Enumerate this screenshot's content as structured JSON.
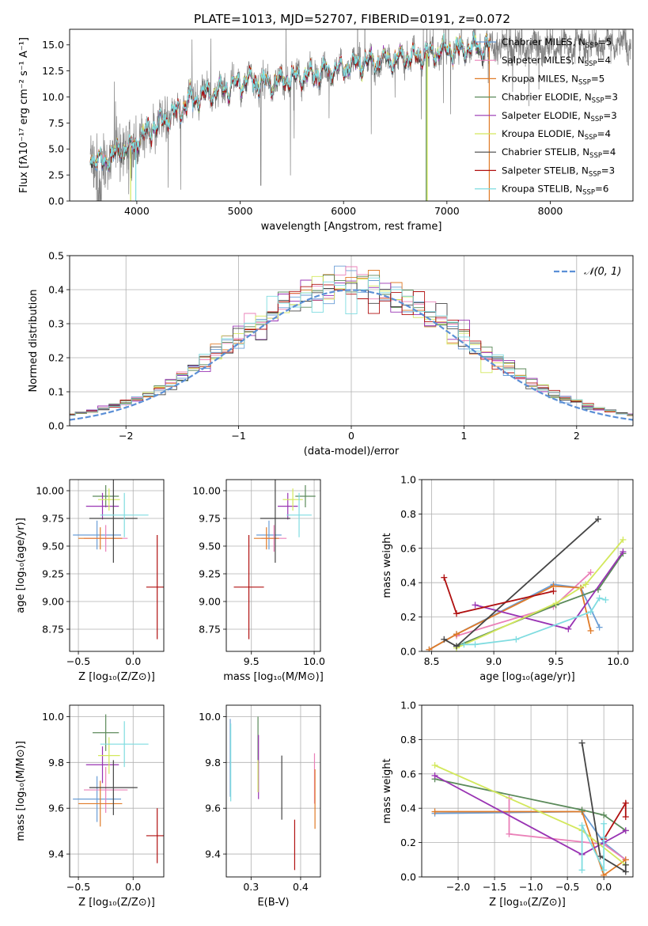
{
  "figure_title": "PLATE=1013, MJD=52707, FIBERID=0191, z=0.072",
  "colors": {
    "Chabrier MILES": "#6a9ed6",
    "Salpeter MILES": "#ea80b8",
    "Kroupa MILES": "#e07b28",
    "Chabrier ELODIE": "#5b8a5a",
    "Salpeter ELODIE": "#9933b3",
    "Kroupa ELODIE": "#d3e85c",
    "Chabrier STELIB": "#454545",
    "Salpeter STELIB": "#b01010",
    "Kroupa STELIB": "#7fdce0",
    "data": "#808080",
    "normal": "#5b8fd6"
  },
  "chart_data": [
    {
      "id": "spectrum",
      "type": "line",
      "xlabel": "wavelength [Angstrom, rest frame]",
      "ylabel": "Flux [fλ10⁻¹⁷ erg cm⁻² s⁻¹ A⁻¹]",
      "xlim": [
        3350,
        8800
      ],
      "ylim": [
        0,
        16.5
      ],
      "xticks": [
        4000,
        5000,
        6000,
        7000,
        8000
      ],
      "yticks": [
        0.0,
        2.5,
        5.0,
        7.5,
        10.0,
        12.5,
        15.0
      ],
      "ytick_labels": [
        "0.0",
        "2.5",
        "5.0",
        "7.5",
        "10.0",
        "12.5",
        "15.0"
      ],
      "legend": [
        {
          "name": "Chabrier MILES",
          "sub": "SSP",
          "n": "5"
        },
        {
          "name": "Salpeter MILES",
          "sub": "SSP",
          "n": "4"
        },
        {
          "name": "Kroupa MILES",
          "sub": "SSP",
          "n": "5"
        },
        {
          "name": "Chabrier ELODIE",
          "sub": "SSP",
          "n": "3"
        },
        {
          "name": "Salpeter ELODIE",
          "sub": "SSP",
          "n": "3"
        },
        {
          "name": "Kroupa ELODIE",
          "sub": "SSP",
          "n": "4"
        },
        {
          "name": "Chabrier STELIB",
          "sub": "SSP",
          "n": "4"
        },
        {
          "name": "Salpeter STELIB",
          "sub": "SSP",
          "n": "3"
        },
        {
          "name": "Kroupa STELIB",
          "sub": "SSP",
          "n": "6"
        }
      ],
      "continuum": [
        [
          3550,
          4.4
        ],
        [
          3650,
          3.6
        ],
        [
          3750,
          4.3
        ],
        [
          3850,
          5.2
        ],
        [
          3950,
          5.2
        ],
        [
          4050,
          6.3
        ],
        [
          4150,
          7.0
        ],
        [
          4300,
          8.0
        ],
        [
          4500,
          9.6
        ],
        [
          4700,
          10.4
        ],
        [
          4900,
          11.0
        ],
        [
          5100,
          11.5
        ],
        [
          5300,
          11.3
        ],
        [
          5500,
          11.8
        ],
        [
          5700,
          12.2
        ],
        [
          5900,
          12.6
        ],
        [
          6100,
          13.1
        ],
        [
          6300,
          13.4
        ],
        [
          6500,
          13.6
        ],
        [
          6700,
          14.0
        ],
        [
          6900,
          14.4
        ],
        [
          7100,
          14.6
        ],
        [
          7300,
          14.7
        ],
        [
          7500,
          14.8
        ]
      ],
      "data_range": [
        3550,
        8780
      ],
      "model_range": [
        3550,
        7420
      ],
      "model_cutoffs": [
        [
          6800,
          "Chabrier ELODIE"
        ],
        [
          6810,
          "Kroupa ELODIE"
        ],
        [
          7410,
          "Kroupa MILES"
        ],
        [
          3940,
          "Kroupa ELODIE"
        ],
        [
          3990,
          "Kroupa STELIB"
        ]
      ]
    },
    {
      "id": "residual-histogram",
      "type": "step",
      "xlabel": "(data-model)/error",
      "ylabel": "Normed distribution",
      "xlim": [
        -2.5,
        2.5
      ],
      "ylim": [
        0,
        0.5
      ],
      "xticks": [
        -2,
        -1,
        0,
        1,
        2
      ],
      "xtick_labels": [
        "−2",
        "−1",
        "0",
        "1",
        "2"
      ],
      "yticks": [
        0.0,
        0.1,
        0.2,
        0.3,
        0.4,
        0.5
      ],
      "ytick_labels": [
        "0.0",
        "0.1",
        "0.2",
        "0.3",
        "0.4",
        "0.5"
      ],
      "legend": "𝒩(0, 1)",
      "bin_width": 0.1
    },
    {
      "id": "age-vs-Z",
      "type": "errorbar",
      "xlabel": "Z [log₁₀(Z/Z⊙)]",
      "ylabel": "age  [log₁₀(age/yr)]",
      "xlim": [
        -0.58,
        0.28
      ],
      "ylim": [
        8.55,
        10.1
      ],
      "xticks": [
        -0.5,
        0.0
      ],
      "xtick_labels": [
        "−0.5",
        "0.0"
      ],
      "yticks": [
        8.75,
        9.0,
        9.25,
        9.5,
        9.75,
        10.0
      ],
      "ytick_labels": [
        "8.75",
        "9.00",
        "9.25",
        "9.50",
        "9.75",
        "10.00"
      ],
      "points": [
        {
          "s": "Chabrier MILES",
          "x": -0.33,
          "xe": 0.22,
          "y": 9.6,
          "ye": 0.13
        },
        {
          "s": "Salpeter MILES",
          "x": -0.25,
          "xe": 0.2,
          "y": 9.57,
          "ye": 0.12
        },
        {
          "s": "Kroupa MILES",
          "x": -0.3,
          "xe": 0.2,
          "y": 9.57,
          "ye": 0.1
        },
        {
          "s": "Chabrier ELODIE",
          "x": -0.25,
          "xe": 0.12,
          "y": 9.95,
          "ye": 0.1
        },
        {
          "s": "Salpeter ELODIE",
          "x": -0.28,
          "xe": 0.15,
          "y": 9.86,
          "ye": 0.12
        },
        {
          "s": "Kroupa ELODIE",
          "x": -0.22,
          "xe": 0.1,
          "y": 9.92,
          "ye": 0.1
        },
        {
          "s": "Chabrier STELIB",
          "x": -0.18,
          "xe": 0.22,
          "y": 9.75,
          "ye": 0.4
        },
        {
          "s": "Salpeter STELIB",
          "x": 0.22,
          "xe": 0.1,
          "y": 9.13,
          "ye": 0.47
        },
        {
          "s": "Kroupa STELIB",
          "x": -0.08,
          "xe": 0.22,
          "y": 9.78,
          "ye": 0.2
        }
      ]
    },
    {
      "id": "age-vs-mass",
      "type": "errorbar",
      "xlabel": "mass [log₁₀(M/M⊙)]",
      "ylabel": "",
      "xlim": [
        9.3,
        10.05
      ],
      "ylim": [
        8.55,
        10.1
      ],
      "xticks": [
        9.5,
        10.0
      ],
      "xtick_labels": [
        "9.5",
        "10.0"
      ],
      "yticks": [
        8.75,
        9.0,
        9.25,
        9.5,
        9.75,
        10.0
      ],
      "ytick_labels": [
        "8.75",
        "9.00",
        "9.25",
        "9.50",
        "9.75",
        "10.00"
      ],
      "points": [
        {
          "s": "Chabrier MILES",
          "x": 9.64,
          "xe": 0.1,
          "y": 9.6,
          "ye": 0.13
        },
        {
          "s": "Salpeter MILES",
          "x": 9.68,
          "xe": 0.1,
          "y": 9.57,
          "ye": 0.12
        },
        {
          "s": "Kroupa MILES",
          "x": 9.62,
          "xe": 0.1,
          "y": 9.57,
          "ye": 0.1
        },
        {
          "s": "Chabrier ELODIE",
          "x": 9.93,
          "xe": 0.08,
          "y": 9.95,
          "ye": 0.1
        },
        {
          "s": "Salpeter ELODIE",
          "x": 9.79,
          "xe": 0.08,
          "y": 9.86,
          "ye": 0.12
        },
        {
          "s": "Kroupa ELODIE",
          "x": 9.83,
          "xe": 0.08,
          "y": 9.92,
          "ye": 0.1
        },
        {
          "s": "Chabrier STELIB",
          "x": 9.69,
          "xe": 0.12,
          "y": 9.75,
          "ye": 0.4
        },
        {
          "s": "Salpeter STELIB",
          "x": 9.48,
          "xe": 0.12,
          "y": 9.13,
          "ye": 0.47
        },
        {
          "s": "Kroupa STELIB",
          "x": 9.88,
          "xe": 0.1,
          "y": 9.78,
          "ye": 0.2
        }
      ]
    },
    {
      "id": "weight-vs-age",
      "type": "line",
      "xlabel": "age  [log₁₀(age/yr)]",
      "ylabel": "mass weight",
      "xlim": [
        8.42,
        10.12
      ],
      "ylim": [
        0,
        1
      ],
      "xticks": [
        8.5,
        9.0,
        9.5,
        10.0
      ],
      "xtick_labels": [
        "8.5",
        "9.0",
        "9.5",
        "10.0"
      ],
      "yticks": [
        0.0,
        0.2,
        0.4,
        0.6,
        0.8,
        1.0
      ],
      "ytick_labels": [
        "0.0",
        "0.2",
        "0.4",
        "0.6",
        "0.8",
        "1.0"
      ],
      "series": [
        {
          "s": "Chabrier MILES",
          "x": [
            8.48,
            8.7,
            9.48,
            9.7,
            9.85
          ],
          "y": [
            0.01,
            0.1,
            0.39,
            0.37,
            0.14
          ]
        },
        {
          "s": "Salpeter MILES",
          "x": [
            8.7,
            9.48,
            9.78
          ],
          "y": [
            0.09,
            0.26,
            0.46
          ]
        },
        {
          "s": "Kroupa MILES",
          "x": [
            8.48,
            8.7,
            9.48,
            9.7,
            9.78
          ],
          "y": [
            0.01,
            0.1,
            0.38,
            0.37,
            0.12
          ]
        },
        {
          "s": "Chabrier ELODIE",
          "x": [
            8.7,
            9.5,
            9.84,
            10.04
          ],
          "y": [
            0.03,
            0.27,
            0.36,
            0.57
          ]
        },
        {
          "s": "Salpeter ELODIE",
          "x": [
            8.85,
            9.6,
            10.04
          ],
          "y": [
            0.27,
            0.13,
            0.58
          ]
        },
        {
          "s": "Kroupa ELODIE",
          "x": [
            8.7,
            9.5,
            9.74,
            10.04
          ],
          "y": [
            0.02,
            0.28,
            0.39,
            0.65
          ]
        },
        {
          "s": "Chabrier STELIB",
          "x": [
            8.6,
            8.7,
            9.84
          ],
          "y": [
            0.07,
            0.03,
            0.77
          ]
        },
        {
          "s": "Salpeter STELIB",
          "x": [
            8.6,
            8.7,
            9.48
          ],
          "y": [
            0.43,
            0.22,
            0.35
          ]
        },
        {
          "s": "Kroupa STELIB",
          "x": [
            8.76,
            8.85,
            9.18,
            9.78,
            9.85,
            9.9
          ],
          "y": [
            0.04,
            0.04,
            0.07,
            0.23,
            0.31,
            0.3
          ]
        }
      ]
    },
    {
      "id": "mass-vs-Z",
      "type": "errorbar",
      "xlabel": "Z [log₁₀(Z/Z⊙)]",
      "ylabel": "mass [log₁₀(M/M⊙)]",
      "xlim": [
        -0.58,
        0.28
      ],
      "ylim": [
        9.3,
        10.05
      ],
      "xticks": [
        -0.5,
        0.0
      ],
      "xtick_labels": [
        "−0.5",
        "0.0"
      ],
      "yticks": [
        9.4,
        9.6,
        9.8,
        10.0
      ],
      "ytick_labels": [
        "9.4",
        "9.6",
        "9.8",
        "10.0"
      ],
      "points": [
        {
          "s": "Chabrier MILES",
          "x": -0.33,
          "xe": 0.22,
          "y": 9.64,
          "ye": 0.1
        },
        {
          "s": "Salpeter MILES",
          "x": -0.25,
          "xe": 0.2,
          "y": 9.68,
          "ye": 0.1
        },
        {
          "s": "Kroupa MILES",
          "x": -0.3,
          "xe": 0.2,
          "y": 9.62,
          "ye": 0.1
        },
        {
          "s": "Chabrier ELODIE",
          "x": -0.25,
          "xe": 0.12,
          "y": 9.93,
          "ye": 0.08
        },
        {
          "s": "Salpeter ELODIE",
          "x": -0.28,
          "xe": 0.15,
          "y": 9.79,
          "ye": 0.08
        },
        {
          "s": "Kroupa ELODIE",
          "x": -0.22,
          "xe": 0.1,
          "y": 9.83,
          "ye": 0.08
        },
        {
          "s": "Chabrier STELIB",
          "x": -0.18,
          "xe": 0.22,
          "y": 9.69,
          "ye": 0.12
        },
        {
          "s": "Salpeter STELIB",
          "x": 0.22,
          "xe": 0.1,
          "y": 9.48,
          "ye": 0.12
        },
        {
          "s": "Kroupa STELIB",
          "x": -0.08,
          "xe": 0.22,
          "y": 9.88,
          "ye": 0.1
        }
      ]
    },
    {
      "id": "mass-vs-EBV",
      "type": "errorbar",
      "xlabel": "E(B-V)",
      "ylabel": "",
      "xlim": [
        0.25,
        0.44
      ],
      "ylim": [
        9.3,
        10.05
      ],
      "xticks": [
        0.3,
        0.4
      ],
      "xtick_labels": [
        "0.3",
        "0.4"
      ],
      "yticks": [
        9.4,
        9.6,
        9.8,
        10.0
      ],
      "ytick_labels": [
        "9.4",
        "9.6",
        "9.8",
        "10.0"
      ],
      "points": [
        {
          "s": "Chabrier MILES",
          "x": 0.258,
          "xe": 0,
          "y": 9.82,
          "ye": 0.17
        },
        {
          "s": "Kroupa STELIB",
          "x": 0.259,
          "xe": 0,
          "y": 9.8,
          "ye": 0.17
        },
        {
          "s": "Chabrier ELODIE",
          "x": 0.314,
          "xe": 0,
          "y": 9.86,
          "ye": 0.14
        },
        {
          "s": "Salpeter ELODIE",
          "x": 0.315,
          "xe": 0,
          "y": 9.78,
          "ye": 0.14
        },
        {
          "s": "Kroupa ELODIE",
          "x": 0.314,
          "xe": 0,
          "y": 9.74,
          "ye": 0.07
        },
        {
          "s": "Chabrier STELIB",
          "x": 0.362,
          "xe": 0,
          "y": 9.69,
          "ye": 0.14
        },
        {
          "s": "Salpeter STELIB",
          "x": 0.388,
          "xe": 0,
          "y": 9.44,
          "ye": 0.11
        },
        {
          "s": "Salpeter MILES",
          "x": 0.428,
          "xe": 0,
          "y": 9.73,
          "ye": 0.11
        },
        {
          "s": "Kroupa MILES",
          "x": 0.429,
          "xe": 0,
          "y": 9.64,
          "ye": 0.13
        }
      ]
    },
    {
      "id": "weight-vs-Z",
      "type": "line",
      "xlabel": "Z [log₁₀(Z/Z⊙)]",
      "ylabel": "mass weight",
      "xlim": [
        -2.5,
        0.4
      ],
      "ylim": [
        0,
        1
      ],
      "xticks": [
        -2.0,
        -1.5,
        -1.0,
        -0.5,
        0.0
      ],
      "xtick_labels": [
        "−2.0",
        "−1.5",
        "−1.0",
        "−0.5",
        "0.0"
      ],
      "yticks": [
        0.0,
        0.2,
        0.4,
        0.6,
        0.8,
        1.0
      ],
      "ytick_labels": [
        "0.0",
        "0.2",
        "0.4",
        "0.6",
        "0.8",
        "1.0"
      ],
      "series": [
        {
          "s": "Chabrier MILES",
          "x": [
            -2.32,
            -0.3,
            0.0,
            0.3
          ],
          "y": [
            0.37,
            0.38,
            0.2,
            0.1
          ]
        },
        {
          "s": "Salpeter MILES",
          "x": [
            -1.3,
            -1.3,
            0.0,
            0.3
          ],
          "y": [
            0.46,
            0.25,
            0.19,
            0.1
          ]
        },
        {
          "s": "Kroupa MILES",
          "x": [
            -2.32,
            -0.3,
            0.0,
            0.3
          ],
          "y": [
            0.38,
            0.38,
            0.01,
            0.1
          ]
        },
        {
          "s": "Chabrier ELODIE",
          "x": [
            -2.32,
            -0.3,
            0.0,
            0.3
          ],
          "y": [
            0.57,
            0.39,
            0.36,
            0.27
          ]
        },
        {
          "s": "Salpeter ELODIE",
          "x": [
            -2.32,
            -0.3,
            0.3
          ],
          "y": [
            0.59,
            0.13,
            0.27
          ]
        },
        {
          "s": "Kroupa ELODIE",
          "x": [
            -2.32,
            -0.3,
            0.3
          ],
          "y": [
            0.65,
            0.27,
            0.07
          ]
        },
        {
          "s": "Chabrier STELIB",
          "x": [
            -0.3,
            -0.05,
            0.3,
            0.3
          ],
          "y": [
            0.78,
            0.12,
            0.03,
            0.07
          ]
        },
        {
          "s": "Salpeter STELIB",
          "x": [
            0.0,
            0.3,
            0.3
          ],
          "y": [
            0.22,
            0.43,
            0.35
          ]
        },
        {
          "s": "Kroupa STELIB",
          "x": [
            -0.3,
            -0.3,
            0.0,
            0.0,
            0.0
          ],
          "y": [
            0.04,
            0.3,
            0.04,
            0.23,
            0.31
          ]
        }
      ]
    }
  ]
}
